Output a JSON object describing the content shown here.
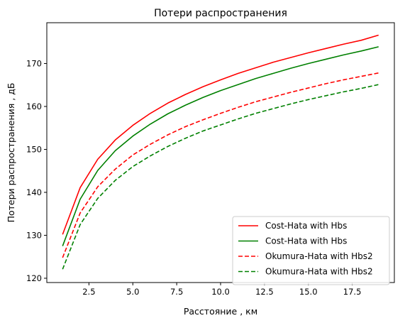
{
  "chart_data": {
    "type": "line",
    "title": "Потери распространения",
    "xlabel": "Расстояние , км",
    "ylabel": "Потери распространения , дБ",
    "xlim": [
      0.1,
      19.9
    ],
    "ylim": [
      119,
      179.5
    ],
    "xticks": [
      2.5,
      5.0,
      7.5,
      10.0,
      12.5,
      15.0,
      17.5
    ],
    "xtick_labels": [
      "2.5",
      "5.0",
      "7.5",
      "10.0",
      "12.5",
      "15.0",
      "17.5"
    ],
    "yticks": [
      120,
      130,
      140,
      150,
      160,
      170
    ],
    "ytick_labels": [
      "120",
      "130",
      "140",
      "150",
      "160",
      "170"
    ],
    "grid": false,
    "legend_position": "lower-right",
    "x": [
      1,
      2,
      3,
      4,
      5,
      6,
      7,
      8,
      9,
      10,
      11,
      12,
      13,
      14,
      15,
      16,
      17,
      18,
      19
    ],
    "series": [
      {
        "name": "Cost-Hata with Hbs",
        "color": "#ff0000",
        "dash": "solid",
        "values": [
          130.2,
          141.1,
          147.7,
          152.2,
          155.6,
          158.4,
          160.8,
          162.8,
          164.6,
          166.2,
          167.7,
          169.0,
          170.3,
          171.4,
          172.5,
          173.5,
          174.5,
          175.4,
          176.6
        ]
      },
      {
        "name": "Cost-Hata with Hbs",
        "color": "#008000",
        "dash": "solid",
        "values": [
          127.5,
          138.4,
          145.1,
          149.7,
          153.1,
          155.9,
          158.3,
          160.3,
          162.1,
          163.7,
          165.1,
          166.5,
          167.7,
          168.9,
          170.0,
          171.0,
          172.0,
          172.9,
          173.9
        ]
      },
      {
        "name": "Okumura-Hata with Hbs2",
        "color": "#ff0000",
        "dash": "dashed",
        "values": [
          124.8,
          135.2,
          141.3,
          145.4,
          148.7,
          151.2,
          153.4,
          155.3,
          156.9,
          158.4,
          159.8,
          161.1,
          162.2,
          163.3,
          164.3,
          165.3,
          166.2,
          167.0,
          167.8
        ]
      },
      {
        "name": "Okumura-Hata with Hbs2",
        "color": "#008000",
        "dash": "dashed",
        "values": [
          122.1,
          132.5,
          138.6,
          142.8,
          146.0,
          148.5,
          150.7,
          152.6,
          154.3,
          155.7,
          157.1,
          158.4,
          159.5,
          160.6,
          161.6,
          162.5,
          163.4,
          164.2,
          165.1
        ]
      }
    ]
  }
}
